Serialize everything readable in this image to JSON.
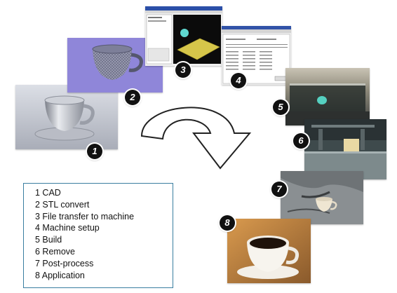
{
  "steps": [
    {
      "number": "1",
      "label": "CAD"
    },
    {
      "number": "2",
      "label": "STL convert"
    },
    {
      "number": "3",
      "label": "File transfer to machine"
    },
    {
      "number": "4",
      "label": "Machine setup"
    },
    {
      "number": "5",
      "label": "Build"
    },
    {
      "number": "6",
      "label": "Remove"
    },
    {
      "number": "7",
      "label": "Post-process"
    },
    {
      "number": "8",
      "label": "Application"
    }
  ],
  "legend_lines": [
    "1 CAD",
    "2 STL convert",
    "3 File transfer to machine",
    "4 Machine setup",
    "5 Build",
    "6 Remove",
    "7 Post-process",
    "8 Application"
  ],
  "colors": {
    "legend_border": "#3a7ea0",
    "badge_fill": "#111111",
    "cad_background": "#c9ccd6",
    "stl_background": "#8f86d9",
    "mesh_color": "#6b6f86"
  }
}
